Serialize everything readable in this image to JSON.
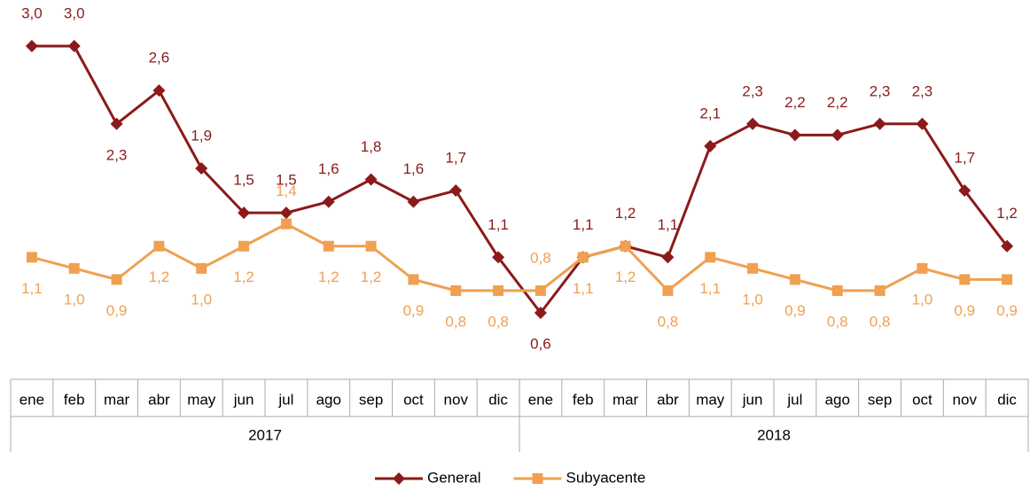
{
  "chart_data": {
    "type": "line",
    "categories": [
      "ene",
      "feb",
      "mar",
      "abr",
      "may",
      "jun",
      "jul",
      "ago",
      "sep",
      "oct",
      "nov",
      "dic",
      "ene",
      "feb",
      "mar",
      "abr",
      "may",
      "jun",
      "jul",
      "ago",
      "sep",
      "oct",
      "nov",
      "dic"
    ],
    "groups": [
      "2017",
      "2018"
    ],
    "series": [
      {
        "name": "General",
        "color": "#8b1a1a",
        "marker": "diamond",
        "values": [
          3.0,
          3.0,
          2.3,
          2.6,
          1.9,
          1.5,
          1.5,
          1.6,
          1.8,
          1.6,
          1.7,
          1.1,
          0.6,
          1.1,
          1.2,
          1.1,
          2.1,
          2.3,
          2.2,
          2.2,
          2.3,
          2.3,
          1.7,
          1.2
        ],
        "value_labels": [
          "3,0",
          "3,0",
          "2,3",
          "2,6",
          "1,9",
          "1,5",
          "1,5",
          "1,6",
          "1,8",
          "1,6",
          "1,7",
          "1,1",
          "0,6",
          "1,1",
          "1,2",
          "1,1",
          "2,1",
          "2,3",
          "2,2",
          "2,2",
          "2,3",
          "2,3",
          "1,7",
          "1,2"
        ]
      },
      {
        "name": "Subyacente",
        "color": "#f0a050",
        "marker": "square",
        "values": [
          1.1,
          1.0,
          0.9,
          1.2,
          1.0,
          1.2,
          1.4,
          1.2,
          1.2,
          0.9,
          0.8,
          0.8,
          0.8,
          1.1,
          1.2,
          0.8,
          1.1,
          1.0,
          0.9,
          0.8,
          0.8,
          1.0,
          0.9,
          0.9
        ],
        "value_labels": [
          "1,1",
          "1,0",
          "0,9",
          "1,2",
          "1,0",
          "1,2",
          "1,4",
          "1,2",
          "1,2",
          "0,9",
          "0,8",
          "0,8",
          "0,8",
          "1,1",
          "1,2",
          "0,8",
          "1,1",
          "1,0",
          "0,9",
          "0,8",
          "0,8",
          "1,0",
          "0,9",
          "0,9"
        ]
      }
    ],
    "legend": "bottom"
  }
}
